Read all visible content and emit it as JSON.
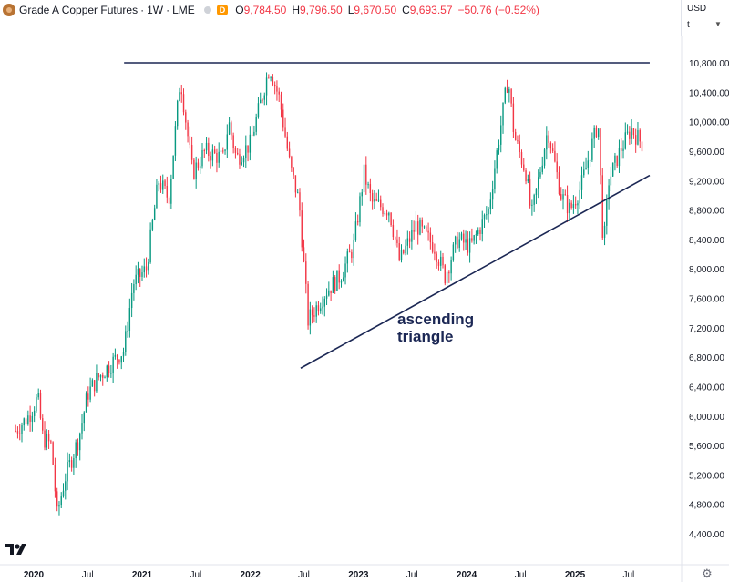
{
  "header": {
    "title": "Grade A Copper Futures",
    "interval": "1W",
    "exchange": "LME",
    "delay_badge": "D",
    "ohlc": [
      {
        "label": "O",
        "value": "9,784.50"
      },
      {
        "label": "H",
        "value": "9,796.50"
      },
      {
        "label": "L",
        "value": "9,670.50"
      },
      {
        "label": "C",
        "value": "9,693.57"
      }
    ],
    "change": "−50.76 (−0.52%)"
  },
  "right_panel": {
    "currency": "USD",
    "unit": "t"
  },
  "icons": {
    "symbol": "copper-symbol-icon",
    "logo": "tradingview-logo-icon",
    "settings": "gear-icon"
  },
  "colors": {
    "up": "#089981",
    "down": "#f23645",
    "annotation": "#1b2754"
  },
  "chart_data": {
    "type": "candlestick",
    "y_axis_ticks": [
      "10,800.00",
      "10,400.00",
      "10,000.00",
      "9,600.00",
      "9,200.00",
      "8,800.00",
      "8,400.00",
      "8,000.00",
      "7,600.00",
      "7,200.00",
      "6,800.00",
      "6,400.00",
      "6,000.00",
      "5,600.00",
      "5,200.00",
      "4,800.00",
      "4,400.00"
    ],
    "y_values": [
      10800,
      10400,
      10000,
      9600,
      9200,
      8800,
      8400,
      8000,
      7600,
      7200,
      6800,
      6400,
      6000,
      5600,
      5200,
      4800,
      4400
    ],
    "x_axis_ticks": [
      {
        "label": "2020",
        "date": "2020-01-01",
        "bold": true
      },
      {
        "label": "Jul",
        "date": "2020-07-01",
        "bold": false
      },
      {
        "label": "2021",
        "date": "2021-01-01",
        "bold": true
      },
      {
        "label": "Jul",
        "date": "2021-07-01",
        "bold": false
      },
      {
        "label": "2022",
        "date": "2022-01-01",
        "bold": true
      },
      {
        "label": "Jul",
        "date": "2022-07-01",
        "bold": false
      },
      {
        "label": "2023",
        "date": "2023-01-01",
        "bold": true
      },
      {
        "label": "Jul",
        "date": "2023-07-01",
        "bold": false
      },
      {
        "label": "2024",
        "date": "2024-01-01",
        "bold": true
      },
      {
        "label": "Jul",
        "date": "2024-07-01",
        "bold": false
      },
      {
        "label": "2025",
        "date": "2025-01-01",
        "bold": true
      },
      {
        "label": "Jul",
        "date": "2025-07-01",
        "bold": false
      }
    ],
    "price_path": [
      [
        "2019-11-01",
        5800
      ],
      [
        "2019-12-15",
        6000
      ],
      [
        "2020-01-15",
        6250
      ],
      [
        "2020-02-01",
        5700
      ],
      [
        "2020-03-01",
        5600
      ],
      [
        "2020-03-20",
        4650
      ],
      [
        "2020-04-15",
        5150
      ],
      [
        "2020-06-01",
        5700
      ],
      [
        "2020-07-01",
        6300
      ],
      [
        "2020-08-01",
        6500
      ],
      [
        "2020-09-15",
        6700
      ],
      [
        "2020-11-01",
        6900
      ],
      [
        "2020-12-01",
        7800
      ],
      [
        "2021-01-15",
        8000
      ],
      [
        "2021-02-25",
        9200
      ],
      [
        "2021-04-01",
        8950
      ],
      [
        "2021-05-10",
        10600
      ],
      [
        "2021-06-20",
        9300
      ],
      [
        "2021-08-01",
        9600
      ],
      [
        "2021-10-01",
        9500
      ],
      [
        "2021-10-20",
        10000
      ],
      [
        "2021-11-15",
        9500
      ],
      [
        "2022-01-01",
        9700
      ],
      [
        "2022-03-07",
        10750
      ],
      [
        "2022-04-10",
        10300
      ],
      [
        "2022-05-15",
        9400
      ],
      [
        "2022-06-15",
        8900
      ],
      [
        "2022-07-15",
        7300
      ],
      [
        "2022-09-15",
        7700
      ],
      [
        "2022-11-01",
        7900
      ],
      [
        "2022-12-15",
        8300
      ],
      [
        "2023-01-20",
        9300
      ],
      [
        "2023-02-15",
        8900
      ],
      [
        "2023-04-15",
        8800
      ],
      [
        "2023-05-20",
        8100
      ],
      [
        "2023-07-15",
        8600
      ],
      [
        "2023-09-15",
        8300
      ],
      [
        "2023-10-20",
        7900
      ],
      [
        "2023-12-01",
        8400
      ],
      [
        "2024-01-15",
        8300
      ],
      [
        "2024-03-15",
        8800
      ],
      [
        "2024-04-20",
        9800
      ],
      [
        "2024-05-20",
        10600
      ],
      [
        "2024-06-10",
        9800
      ],
      [
        "2024-07-20",
        9300
      ],
      [
        "2024-08-07",
        8700
      ],
      [
        "2024-10-01",
        9900
      ],
      [
        "2024-11-15",
        9000
      ],
      [
        "2024-12-15",
        8800
      ],
      [
        "2025-01-20",
        9100
      ],
      [
        "2025-03-20",
        10000
      ],
      [
        "2025-04-07",
        8250
      ],
      [
        "2025-04-25",
        9200
      ],
      [
        "2025-06-01",
        9600
      ],
      [
        "2025-07-10",
        9900
      ],
      [
        "2025-08-15",
        9700
      ]
    ],
    "resistance": {
      "start": "2020-11-01",
      "end": "2025-09-10",
      "price": 10800
    },
    "support": {
      "start": "2022-06-20",
      "start_price": 6650,
      "end": "2025-09-10",
      "end_price": 9270
    },
    "annotation": {
      "lines": [
        "ascending",
        "triangle"
      ]
    }
  }
}
